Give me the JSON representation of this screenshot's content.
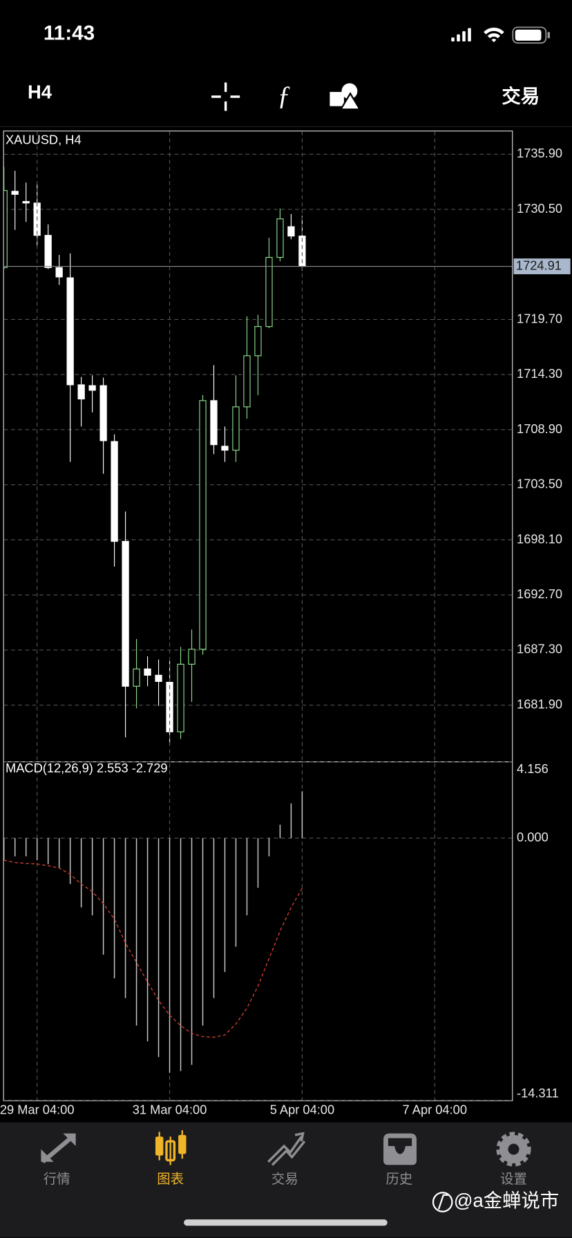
{
  "status_bar": {
    "time": "11:43"
  },
  "toolbar": {
    "timeframe": "H4",
    "action": "交易"
  },
  "chart_data": [
    {
      "type": "candlestick",
      "title": "XAUUSD, H4",
      "open": [
        1724.79,
        1732.27,
        1731.27,
        1731.12,
        1727.95,
        1724.79,
        1723.79,
        1713.3,
        1713.22,
        1713.22,
        1707.74,
        1697.95,
        1683.75,
        1685.45,
        1684.83,
        1684.14,
        1679.28,
        1685.91,
        1687.38,
        1711.75,
        1707.28,
        1706.89,
        1711.14,
        1716.15,
        1719.01,
        1725.79,
        1728.8,
        1727.88
      ],
      "high": [
        1734.67,
        1734.28,
        1733.12,
        1732.97,
        1729.03,
        1726.03,
        1726.18,
        1714.07,
        1714.22,
        1714.0,
        1708.44,
        1700.88,
        1688.38,
        1686.68,
        1686.37,
        1686.22,
        1687.61,
        1689.31,
        1712.29,
        1715.23,
        1709.21,
        1714.22,
        1720.01,
        1720.16,
        1727.72,
        1730.58,
        1730.04,
        1729.88
      ],
      "low": [
        1724.64,
        1728.49,
        1729.27,
        1726.95,
        1724.64,
        1723.09,
        1705.74,
        1709.21,
        1710.6,
        1704.58,
        1695.48,
        1678.74,
        1681.59,
        1683.75,
        1681.82,
        1677.97,
        1678.58,
        1682.21,
        1686.84,
        1706.51,
        1705.74,
        1705.74,
        1709.98,
        1712.29,
        1718.85,
        1725.41,
        1727.57,
        1724.48
      ],
      "close": [
        1732.35,
        1731.97,
        1731.12,
        1727.95,
        1724.79,
        1723.87,
        1713.3,
        1711.91,
        1712.76,
        1707.82,
        1697.95,
        1683.75,
        1685.45,
        1684.83,
        1684.22,
        1679.28,
        1685.91,
        1687.38,
        1711.75,
        1707.43,
        1706.89,
        1711.14,
        1716.15,
        1719.01,
        1725.79,
        1729.57,
        1727.88,
        1724.91
      ],
      "up_color": "#8fe08f",
      "down_color": "#ffffff",
      "xlim": [
        0,
        46
      ],
      "ylim": [
        1676.42,
        1738.14
      ],
      "yticks": [
        {
          "value": 1735.9,
          "label": "1735.90"
        },
        {
          "value": 1730.5,
          "label": "1730.50"
        },
        {
          "value": 1719.7,
          "label": "1719.70"
        },
        {
          "value": 1714.3,
          "label": "1714.30"
        },
        {
          "value": 1708.9,
          "label": "1708.90"
        },
        {
          "value": 1703.5,
          "label": "1703.50"
        },
        {
          "value": 1698.1,
          "label": "1698.10"
        },
        {
          "value": 1692.7,
          "label": "1692.70"
        },
        {
          "value": 1687.3,
          "label": "1687.30"
        },
        {
          "value": 1681.9,
          "label": "1681.90"
        }
      ],
      "current_price": 1724.91,
      "grid": true
    },
    {
      "type": "macd",
      "title": "MACD(12,26,9) 2.553 -2.729",
      "histogram": [
        -1.2,
        -0.99,
        -0.99,
        -1.2,
        -1.41,
        -1.63,
        -2.49,
        -3.77,
        -4.2,
        -6.34,
        -7.63,
        -8.7,
        -10.2,
        -11.06,
        -11.91,
        -12.77,
        -12.68,
        -12.34,
        -10.2,
        -8.7,
        -7.28,
        -5.91,
        -4.2,
        -2.7,
        -0.99,
        0.73,
        1.89,
        2.553
      ],
      "signal": [
        -1.2,
        -1.33,
        -1.37,
        -1.41,
        -1.5,
        -1.63,
        -1.97,
        -2.49,
        -2.91,
        -3.56,
        -4.41,
        -5.7,
        -6.77,
        -7.84,
        -8.83,
        -9.64,
        -10.2,
        -10.63,
        -10.8,
        -10.84,
        -10.71,
        -10.11,
        -9.25,
        -8.05,
        -6.55,
        -5.06,
        -3.77,
        -2.729
      ],
      "histogram_color": "#c8c8c8",
      "signal_color": "#d0402e",
      "xlim": [
        0,
        46
      ],
      "ylim": [
        -14.311,
        4.156
      ],
      "yticks": [
        4.156,
        {
          "value": 0,
          "label": "0.000"
        },
        -14.311
      ],
      "xticks": [
        {
          "value": 3,
          "label": "29 Mar 04:00"
        },
        {
          "value": 15,
          "label": "31 Mar 04:00"
        },
        {
          "value": 27,
          "label": "5 Apr 04:00"
        },
        {
          "value": 39,
          "label": "7 Apr 04:00"
        }
      ],
      "grid": true
    }
  ],
  "tab_bar": {
    "tabs": [
      {
        "label": "行情"
      },
      {
        "label": "图表",
        "selected": true
      },
      {
        "label": "交易"
      },
      {
        "label": "历史"
      },
      {
        "label": "设置"
      }
    ]
  },
  "watermark": "@a金蝉说市"
}
